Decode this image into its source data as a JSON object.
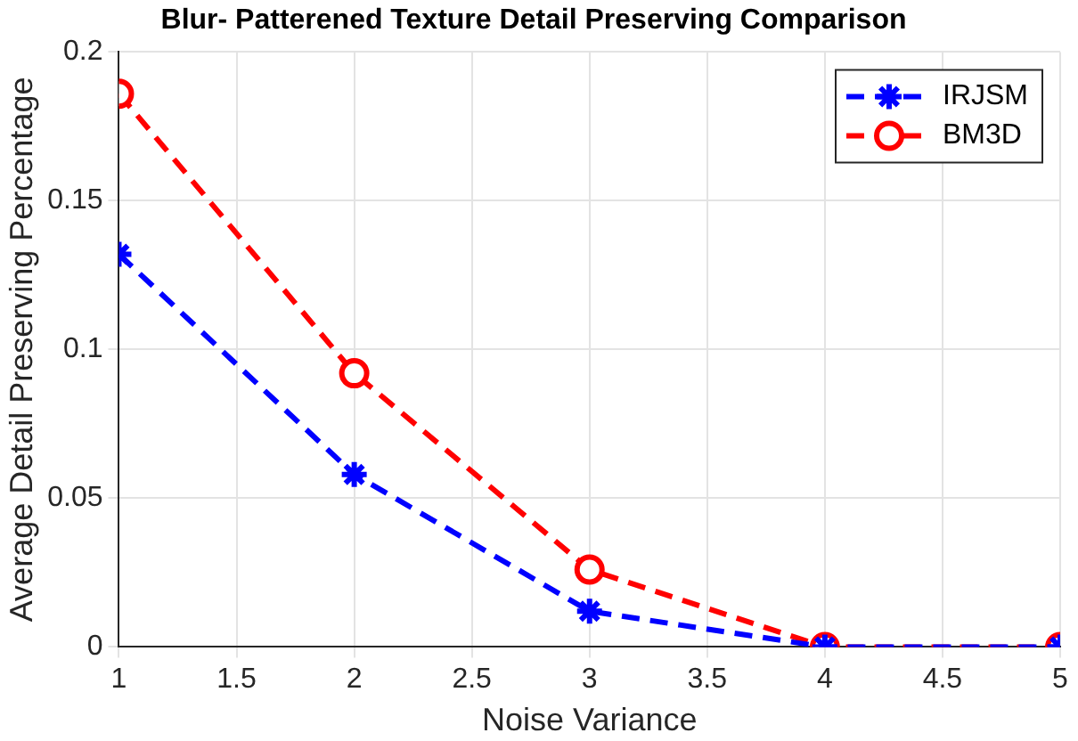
{
  "chart_data": {
    "type": "line",
    "title": "Blur- Patterened Texture Detail Preserving Comparison",
    "xlabel": "Noise Variance",
    "ylabel": "Average Detail Preserving Percentage",
    "x": [
      1,
      2,
      3,
      4,
      5
    ],
    "series": [
      {
        "name": "IRJSM",
        "color": "#0000ff",
        "values": [
          0.132,
          0.058,
          0.012,
          0,
          0
        ],
        "marker": "cross",
        "line_style": "dashed"
      },
      {
        "name": "BM3D",
        "color": "#ff0000",
        "values": [
          0.186,
          0.092,
          0.026,
          0,
          0
        ],
        "marker": "circle",
        "line_style": "dashed"
      }
    ],
    "xlim": [
      1,
      5
    ],
    "xticks": [
      1,
      1.5,
      2,
      2.5,
      3,
      3.5,
      4,
      4.5,
      5
    ],
    "ylim": [
      0,
      0.2
    ],
    "yticks": [
      0,
      0.05,
      0.1,
      0.15,
      0.2
    ],
    "grid": true,
    "legend": "top right"
  }
}
